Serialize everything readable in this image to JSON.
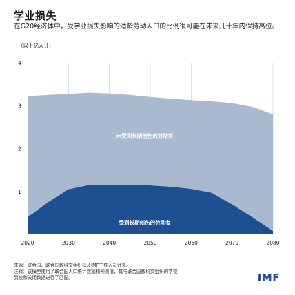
{
  "header": {
    "title": "学业损失",
    "subtitle": "在G20经济体中，受学业损失影响的适龄劳动人口的比例很可能在未来几十年内保持高位。",
    "unit": "（以十亿人计）"
  },
  "chart_data": {
    "type": "area",
    "x": [
      2020,
      2025,
      2030,
      2035,
      2040,
      2045,
      2050,
      2055,
      2060,
      2065,
      2070,
      2075,
      2080
    ],
    "series": [
      {
        "name": "受到长期创伤的劳动者",
        "values": [
          0.4,
          0.75,
          1.05,
          1.15,
          1.15,
          1.15,
          1.14,
          1.11,
          1.06,
          0.97,
          0.7,
          0.4,
          0.08
        ],
        "color": "#1d4f91"
      },
      {
        "name": "未受到长期创伤的劳动者",
        "values": [
          2.82,
          2.5,
          2.22,
          2.15,
          2.13,
          2.1,
          2.06,
          2.05,
          2.07,
          2.13,
          2.36,
          2.57,
          2.72
        ],
        "color": "#a9b9cf"
      }
    ],
    "x_ticks": [
      2020,
      2030,
      2040,
      2050,
      2060,
      2070,
      2080
    ],
    "y_ticks": [
      4,
      3,
      2,
      1
    ],
    "ylim": [
      0,
      4
    ],
    "xlim": [
      2020,
      2080
    ],
    "stacked": true,
    "labels_inside_areas": true,
    "grid": "vertical"
  },
  "footer": {
    "source": "来源：联合国、联合国教科文组织以及IMF工作人员计算。",
    "note_line1": "注释：该模型使用了联合国人口统计数据和预测值，其与联合国教科文组织的学校",
    "note_line2": "到校和关闭数据进行了匹配。",
    "logo": "IMF"
  },
  "colors": {
    "trauma": "#1d4f91",
    "no_trauma": "#a9b9cf",
    "grid": "#c8c8c8",
    "logo": "#1d4f91"
  }
}
